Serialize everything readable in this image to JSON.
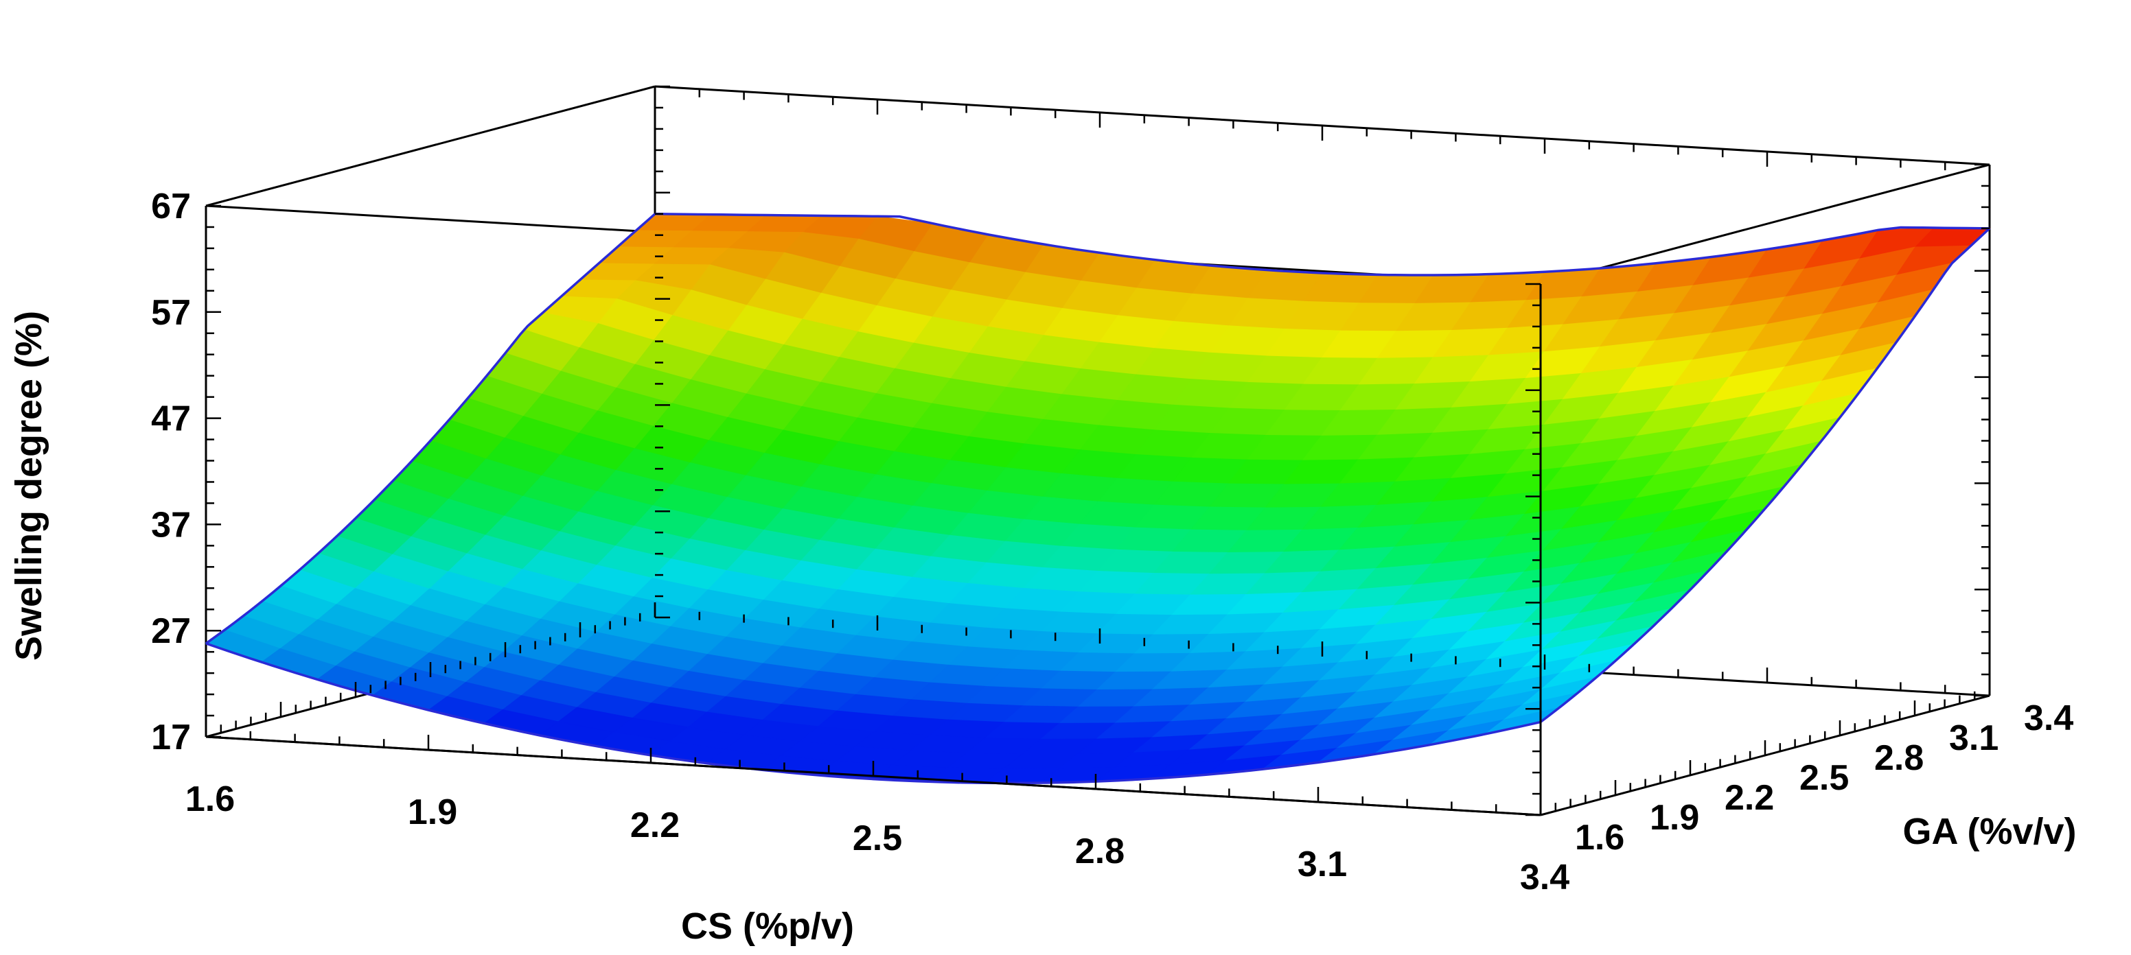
{
  "chart_data": {
    "type": "surface",
    "zlabel": "Swelling degree (%)",
    "xlabel": "CS (%p/v)",
    "ylabel": "GA (%v/v)",
    "x_ticks": [
      "1.6",
      "1.9",
      "2.2",
      "2.5",
      "2.8",
      "3.1",
      "3.4"
    ],
    "y_ticks": [
      "1.6",
      "1.9",
      "2.2",
      "2.5",
      "2.8",
      "3.1",
      "3.4"
    ],
    "z_ticks": [
      "17",
      "27",
      "37",
      "47",
      "57",
      "67"
    ],
    "xlim": [
      1.6,
      3.4
    ],
    "ylim": [
      1.6,
      3.4
    ],
    "zlim": [
      17,
      67
    ],
    "colormap": [
      "#0020ff",
      "#00a0ff",
      "#00f0ff",
      "#00ff60",
      "#20ff00",
      "#80ff00",
      "#ffff00",
      "#ffb000",
      "#ff6000",
      "#ff0000"
    ],
    "surface_corners": [
      {
        "x": 1.6,
        "y": 1.6,
        "z": 29
      },
      {
        "x": 3.4,
        "y": 1.6,
        "z": 33
      },
      {
        "x": 1.6,
        "y": 3.4,
        "z": 55
      },
      {
        "x": 3.4,
        "y": 3.4,
        "z": 61
      }
    ],
    "surface_minimum": {
      "x": 2.6,
      "y": 2.0,
      "z": 22
    }
  }
}
